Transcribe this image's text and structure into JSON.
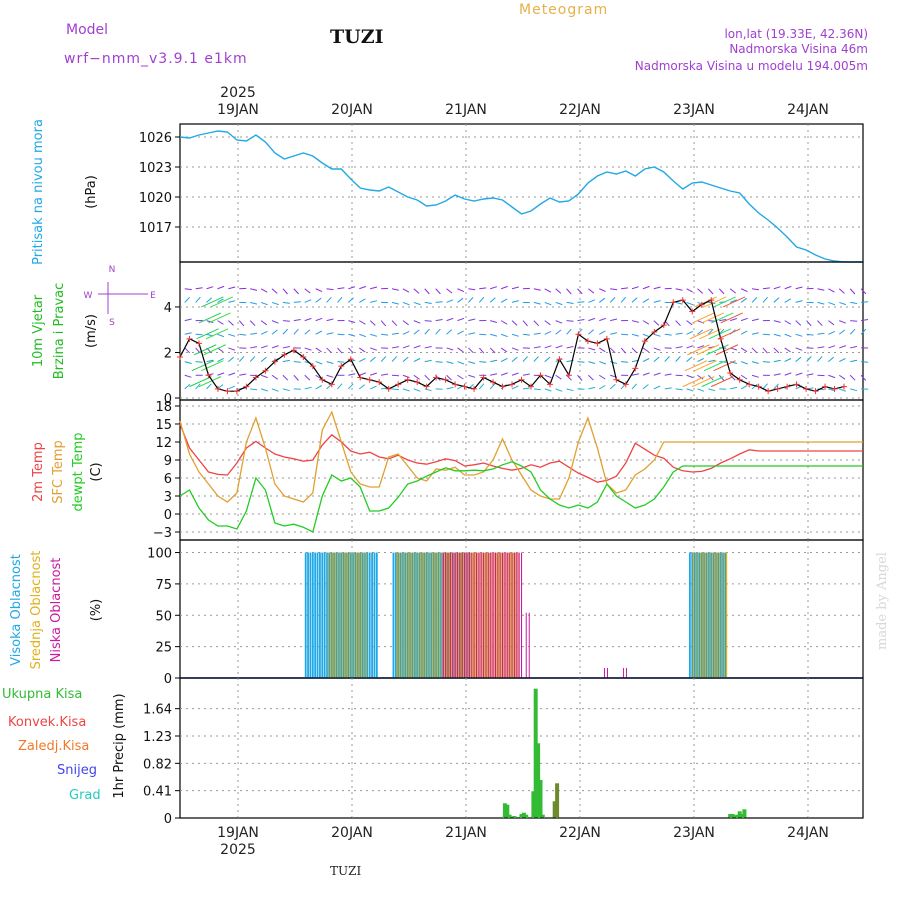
{
  "header": {
    "model_label": "Model",
    "model_name": "wrf−nmm_v3.9.1 e1km",
    "station": "TUZI",
    "product": "Meteogram",
    "coords": "lon,lat (19.33E, 42.36N)",
    "elevation": "Nadmorska Visina 46m",
    "model_elevation": "Nadmorska Visina u modelu 194.005m",
    "watermark": "made by Angel",
    "footer_station": "TUZI"
  },
  "colors": {
    "pressure": "#22a8e6",
    "wind_label": "#22bb22",
    "temp2m": "#ee4444",
    "sfc": "#e0a030",
    "dewpt": "#22cc22",
    "cloud_high": "#1fa8e6",
    "cloud_mid": "#e0b020",
    "cloud_low": "#cc1aa0",
    "precip_total": "#33bb33",
    "precip_conv": "#ee4444",
    "precip_frz": "#f07a2a",
    "precip_snow": "#4444ee",
    "precip_grad": "#22ccbb",
    "title_orange": "#e8b048",
    "violet": "#a040d0"
  },
  "time_axis": {
    "year_label": "2025",
    "day_labels": [
      "19JAN",
      "20JAN",
      "21JAN",
      "22JAN",
      "23JAN",
      "24JAN"
    ]
  },
  "chart_data": [
    {
      "type": "line",
      "name": "pressure",
      "ylabel": "Pritisak na nivou mora",
      "unit": "(hPa)",
      "ylim": [
        1013.5,
        1027.3
      ],
      "yticks": [
        1026,
        1023,
        1020,
        1017
      ],
      "x_hours": [
        0,
        2,
        4,
        6,
        8,
        10,
        12,
        14,
        16,
        18,
        20,
        22,
        24,
        26,
        28,
        30,
        32,
        34,
        36,
        38,
        40,
        42,
        44,
        46,
        48,
        50,
        52,
        54,
        56,
        58,
        60,
        62,
        64,
        66,
        68,
        70,
        72,
        74,
        76,
        78,
        80,
        82,
        84,
        86,
        88,
        90,
        92,
        94,
        96,
        98,
        100,
        102,
        104,
        106,
        108,
        110,
        112,
        114,
        116,
        118,
        120,
        122,
        124,
        126,
        128,
        130,
        132,
        134,
        136,
        138,
        140,
        142,
        144
      ],
      "values": [
        1026.0,
        1025.9,
        1026.2,
        1026.4,
        1026.6,
        1026.5,
        1025.7,
        1025.6,
        1026.2,
        1025.5,
        1024.4,
        1023.8,
        1024.1,
        1024.4,
        1024.1,
        1023.4,
        1022.8,
        1022.8,
        1021.8,
        1020.9,
        1020.7,
        1020.6,
        1021.0,
        1020.5,
        1020.0,
        1019.7,
        1019.1,
        1019.2,
        1019.6,
        1020.2,
        1019.8,
        1019.6,
        1019.8,
        1019.9,
        1019.7,
        1019.0,
        1018.3,
        1018.6,
        1019.3,
        1019.9,
        1019.5,
        1019.6,
        1020.3,
        1021.4,
        1022.1,
        1022.5,
        1022.3,
        1022.6,
        1022.1,
        1022.8,
        1023.0,
        1022.5,
        1021.6,
        1020.8,
        1021.4,
        1021.5,
        1021.2,
        1020.9,
        1020.6,
        1020.4,
        1019.3,
        1018.4,
        1017.7,
        1016.9,
        1016.0,
        1015.0,
        1014.7,
        1014.2,
        1013.8,
        1013.6,
        1013.5,
        1013.5,
        1013.5
      ]
    },
    {
      "type": "line",
      "name": "wind",
      "ylabel_lines": [
        "10m Vjetar",
        "Brzina i Pravac"
      ],
      "unit": "(m/s)",
      "compass": [
        "N",
        "W",
        "E",
        "S"
      ],
      "ylim": [
        0,
        5.8
      ],
      "yticks": [
        0,
        2,
        4
      ],
      "x_hours": [
        0,
        2,
        4,
        6,
        8,
        10,
        12,
        14,
        16,
        18,
        20,
        22,
        24,
        26,
        28,
        30,
        32,
        34,
        36,
        38,
        40,
        42,
        44,
        46,
        48,
        50,
        52,
        54,
        56,
        58,
        60,
        62,
        64,
        66,
        68,
        70,
        72,
        74,
        76,
        78,
        80,
        82,
        84,
        86,
        88,
        90,
        92,
        94,
        96,
        98,
        100,
        102,
        104,
        106,
        108,
        110,
        112,
        114,
        116,
        118,
        120,
        122,
        124,
        126,
        128,
        130,
        132,
        134,
        136,
        138,
        140
      ],
      "speed": [
        1.8,
        2.6,
        2.4,
        1.0,
        0.4,
        0.3,
        0.3,
        0.5,
        0.9,
        1.2,
        1.6,
        1.9,
        2.1,
        1.8,
        1.4,
        0.8,
        0.6,
        1.4,
        1.7,
        0.9,
        0.8,
        0.7,
        0.4,
        0.6,
        0.8,
        0.7,
        0.5,
        0.9,
        0.8,
        0.6,
        0.5,
        0.4,
        0.9,
        0.7,
        0.5,
        0.6,
        0.8,
        0.5,
        1.0,
        0.6,
        1.7,
        1.0,
        2.8,
        2.5,
        2.4,
        2.6,
        0.8,
        0.6,
        1.3,
        2.5,
        2.9,
        3.2,
        4.2,
        4.3,
        3.8,
        4.1,
        4.3,
        2.6,
        1.1,
        0.8,
        0.6,
        0.5,
        0.3,
        0.4,
        0.5,
        0.6,
        0.4,
        0.3,
        0.5,
        0.4,
        0.5
      ]
    },
    {
      "type": "line",
      "name": "temperature",
      "ylabel_lines": [
        "2m Temp",
        "SFC Temp",
        "dewpt Temp"
      ],
      "unit": "(C)",
      "ylim": [
        -4,
        18.5
      ],
      "yticks": [
        -3,
        0,
        3,
        6,
        9,
        12,
        15,
        18
      ],
      "x_hours": [
        0,
        2,
        4,
        6,
        8,
        10,
        12,
        14,
        16,
        18,
        20,
        22,
        24,
        26,
        28,
        30,
        32,
        34,
        36,
        38,
        40,
        42,
        44,
        46,
        48,
        50,
        52,
        54,
        56,
        58,
        60,
        62,
        64,
        66,
        68,
        70,
        72,
        74,
        76,
        78,
        80,
        82,
        84,
        86,
        88,
        90,
        92,
        94,
        96,
        98,
        100,
        102,
        104,
        106,
        108,
        110,
        112,
        114,
        116,
        118,
        120,
        122,
        124,
        126,
        128,
        130,
        132,
        134,
        136,
        138,
        140,
        142,
        144
      ],
      "series": [
        {
          "name": "2m Temp",
          "values": [
            15.0,
            11.0,
            9.0,
            7.0,
            6.6,
            6.5,
            8.5,
            11.0,
            12.1,
            11.0,
            10.0,
            9.5,
            9.2,
            8.8,
            9.0,
            11.5,
            13.2,
            12.0,
            10.5,
            10.0,
            10.3,
            9.5,
            9.2,
            9.8,
            9.0,
            8.5,
            8.3,
            8.7,
            9.2,
            8.9,
            8.0,
            8.2,
            8.5,
            8.0,
            7.6,
            7.3,
            7.6,
            8.2,
            7.8,
            8.5,
            8.8,
            7.8,
            6.8,
            6.1,
            5.3,
            5.6,
            6.3,
            8.5,
            11.8,
            10.8,
            9.8,
            9.3,
            7.8,
            7.2,
            7.0,
            7.1,
            7.6,
            8.5,
            9.2,
            10.0,
            10.7,
            10.5,
            10.5,
            10.5,
            10.5,
            10.5,
            10.5,
            10.5,
            10.5,
            10.5,
            10.5,
            10.5,
            10.5
          ]
        },
        {
          "name": "SFC Temp",
          "values": [
            15.5,
            10.0,
            7.0,
            5.0,
            3.0,
            2.0,
            3.5,
            12.0,
            16.0,
            11.0,
            5.0,
            3.0,
            2.5,
            2.0,
            3.5,
            14.0,
            17.0,
            12.0,
            7.0,
            5.0,
            4.5,
            4.5,
            9.5,
            10.0,
            8.0,
            6.0,
            5.5,
            7.5,
            7.3,
            7.8,
            6.5,
            6.5,
            7.0,
            9.0,
            12.5,
            9.0,
            6.5,
            4.0,
            3.0,
            2.5,
            2.5,
            6.0,
            12.0,
            16.0,
            11.0,
            5.0,
            3.5,
            4.0,
            6.5,
            7.5,
            9.0,
            12.0,
            12.0,
            12.0,
            12.0,
            12.0,
            12.0,
            12.0,
            12.0,
            12.0,
            12.0,
            12.0,
            12.0,
            12.0,
            12.0,
            12.0,
            12.0,
            12.0,
            12.0,
            12.0,
            12.0,
            12.0,
            12.0
          ]
        },
        {
          "name": "dewpt Temp",
          "values": [
            3.0,
            4.0,
            1.0,
            -1.0,
            -2.0,
            -2.0,
            -2.5,
            0.5,
            6.0,
            4.0,
            -1.5,
            -2.0,
            -1.7,
            -2.2,
            -3.0,
            3.0,
            6.5,
            5.5,
            6.0,
            4.5,
            0.5,
            0.5,
            1.0,
            2.8,
            5.0,
            5.5,
            6.3,
            7.0,
            7.7,
            7.2,
            7.2,
            7.3,
            7.2,
            7.5,
            8.2,
            8.7,
            8.0,
            7.0,
            4.0,
            2.5,
            1.5,
            1.0,
            1.5,
            1.0,
            2.0,
            5.0,
            3.0,
            2.0,
            1.0,
            1.5,
            2.5,
            4.5,
            7.0,
            8.0,
            8.0,
            8.0,
            8.0,
            8.0,
            8.0,
            8.0,
            8.0,
            8.0,
            8.0,
            8.0,
            8.0,
            8.0,
            8.0,
            8.0,
            8.0,
            8.0,
            8.0,
            8.0,
            8.0
          ]
        }
      ]
    },
    {
      "type": "bar",
      "name": "clouds",
      "ylabel_lines": [
        "Visoka Oblacnost",
        "Srednja Oblacnost",
        "Niska Oblacnost"
      ],
      "unit": "(%)",
      "ylim": [
        0,
        100
      ],
      "yticks": [
        0,
        25,
        50,
        75,
        100
      ],
      "series": [
        {
          "name": "Visoka Oblacnost",
          "ranges": [
            [
              26.5,
              41.5,
              100
            ],
            [
              45.0,
              61.0,
              100
            ],
            [
              107.5,
              115.0,
              100
            ]
          ]
        },
        {
          "name": "Srednja Oblacnost",
          "ranges": [
            [
              31.0,
              39.0,
              100
            ],
            [
              45.5,
              71.0,
              100
            ],
            [
              108.0,
              115.0,
              100
            ]
          ]
        },
        {
          "name": "Niska Oblacnost",
          "ranges": [
            [
              55.0,
              71.5,
              100
            ]
          ],
          "spikes": [
            [
              73.0,
              52
            ],
            [
              89.5,
              8
            ],
            [
              93.5,
              8
            ]
          ]
        }
      ]
    },
    {
      "type": "bar",
      "name": "precipitation",
      "ylabel_lines": [
        "Ukupna Kisa",
        "Konvek.Kisa",
        "Zaledj.Kisa",
        "Snijeg",
        "Grad"
      ],
      "unit": "1hr Precip (mm)",
      "ylim": [
        0,
        2.1
      ],
      "yticks": [
        0,
        0.41,
        0.82,
        1.23,
        1.64
      ],
      "x_hours": [
        68.5,
        69,
        69.5,
        70,
        70.5,
        72,
        72.5,
        73,
        74.5,
        75,
        75.5,
        76,
        76.5,
        79,
        79.5,
        116,
        116.5,
        117,
        117.5,
        118,
        118.5,
        119
      ],
      "values": [
        0.22,
        0.2,
        0.05,
        0.02,
        0.03,
        0.06,
        0.08,
        0.05,
        0.4,
        1.94,
        1.12,
        0.57,
        0.05,
        0.25,
        0.52,
        0.06,
        0.06,
        0.04,
        0.05,
        0.1,
        0.06,
        0.13
      ]
    }
  ]
}
